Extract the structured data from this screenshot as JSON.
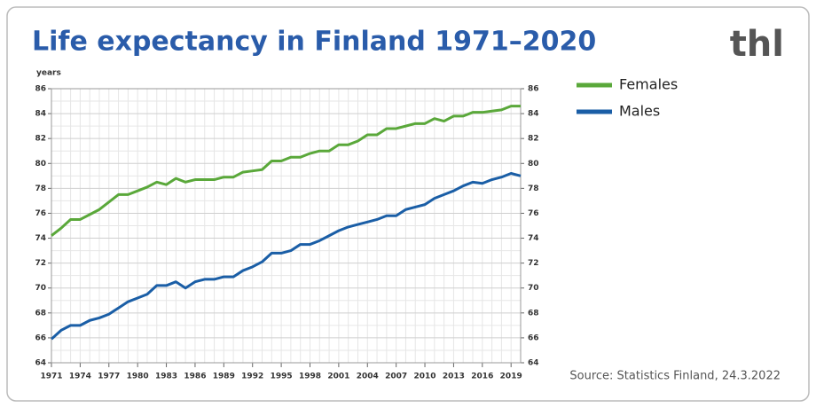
{
  "chart_data": {
    "type": "line",
    "title": "Life expectancy in Finland 1971–2020",
    "y_label": "years",
    "source": "Source: Statistics Finland, 24.3.2022",
    "logo": "thl",
    "x": [
      1971,
      1972,
      1973,
      1974,
      1975,
      1976,
      1977,
      1978,
      1979,
      1980,
      1981,
      1982,
      1983,
      1984,
      1985,
      1986,
      1987,
      1988,
      1989,
      1990,
      1991,
      1992,
      1993,
      1994,
      1995,
      1996,
      1997,
      1998,
      1999,
      2000,
      2001,
      2002,
      2003,
      2004,
      2005,
      2006,
      2007,
      2008,
      2009,
      2010,
      2011,
      2012,
      2013,
      2014,
      2015,
      2016,
      2017,
      2018,
      2019,
      2020
    ],
    "series": [
      {
        "name": "Females",
        "color": "#5aa83a",
        "values": [
          74.2,
          74.8,
          75.5,
          75.5,
          75.9,
          76.3,
          76.9,
          77.5,
          77.5,
          77.8,
          78.1,
          78.5,
          78.3,
          78.8,
          78.5,
          78.7,
          78.7,
          78.7,
          78.9,
          78.9,
          79.3,
          79.4,
          79.5,
          80.2,
          80.2,
          80.5,
          80.5,
          80.8,
          81.0,
          81.0,
          81.5,
          81.5,
          81.8,
          82.3,
          82.3,
          82.8,
          82.8,
          83.0,
          83.2,
          83.2,
          83.6,
          83.4,
          83.8,
          83.8,
          84.1,
          84.1,
          84.2,
          84.3,
          84.6,
          84.6
        ]
      },
      {
        "name": "Males",
        "color": "#1a5ea6",
        "values": [
          65.9,
          66.6,
          67.0,
          67.0,
          67.4,
          67.6,
          67.9,
          68.4,
          68.9,
          69.2,
          69.5,
          70.2,
          70.2,
          70.5,
          70.0,
          70.5,
          70.7,
          70.7,
          70.9,
          70.9,
          71.4,
          71.7,
          72.1,
          72.8,
          72.8,
          73.0,
          73.5,
          73.5,
          73.8,
          74.2,
          74.6,
          74.9,
          75.1,
          75.3,
          75.5,
          75.8,
          75.8,
          76.3,
          76.5,
          76.7,
          77.2,
          77.5,
          77.8,
          78.2,
          78.5,
          78.4,
          78.7,
          78.9,
          79.2,
          79.0
        ]
      }
    ],
    "xlim": [
      1971,
      2020
    ],
    "xticks": [
      1971,
      1974,
      1977,
      1980,
      1983,
      1986,
      1989,
      1992,
      1995,
      1998,
      2001,
      2004,
      2007,
      2010,
      2013,
      2016,
      2019
    ],
    "ylim": [
      64,
      86
    ],
    "yticks": [
      64,
      66,
      68,
      70,
      72,
      74,
      76,
      78,
      80,
      82,
      84,
      86
    ],
    "grid": true
  }
}
